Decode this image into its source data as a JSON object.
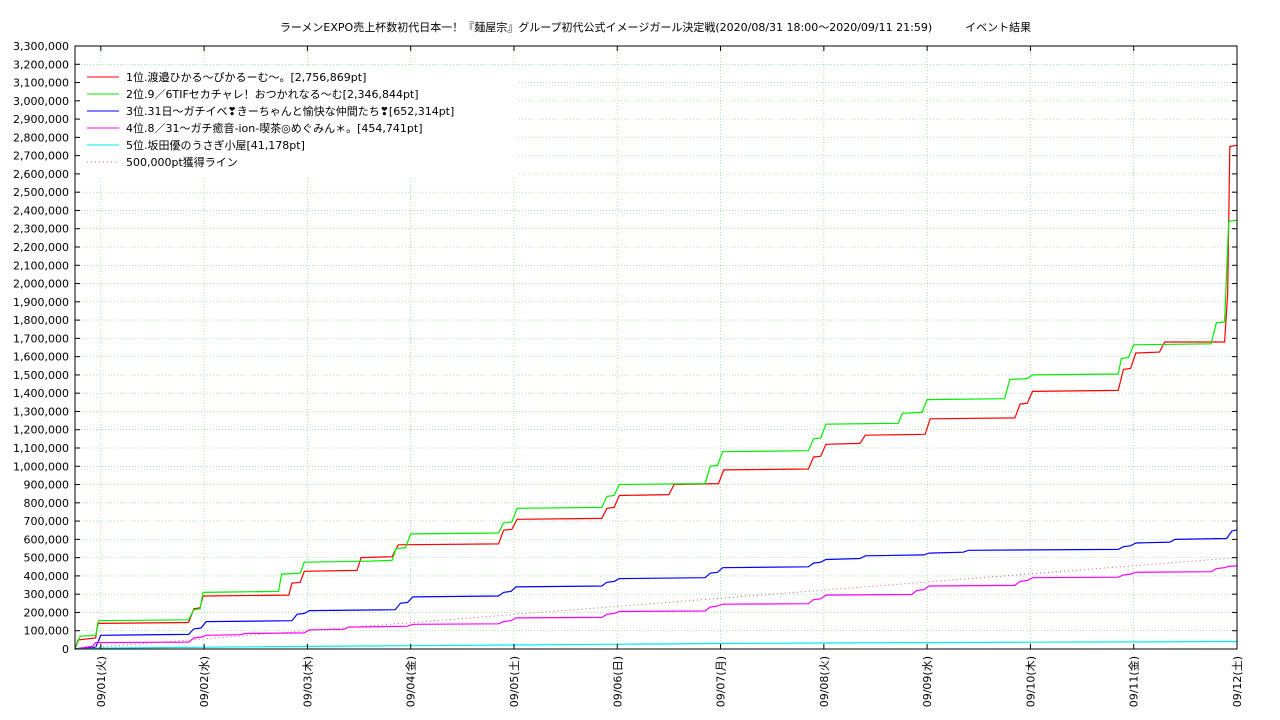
{
  "chart_data": {
    "type": "line",
    "title": "ラーメンEXPO売上杯数初代日本一！『麺屋宗』グループ初代公式イメージガール決定戦(2020/08/31 18:00〜2020/09/11 21:59)　　　イベント結果",
    "xlabel": "",
    "ylabel": "",
    "x_ticks": [
      "09/01(火)",
      "09/02(水)",
      "09/03(木)",
      "09/04(金)",
      "09/05(土)",
      "09/06(日)",
      "09/07(月)",
      "09/08(火)",
      "09/09(水)",
      "09/10(木)",
      "09/11(金)",
      "09/12(土)"
    ],
    "x_unit": "days since 09/01 00:00",
    "xlim": [
      -0.25,
      11.0
    ],
    "y_ticks": [
      "0",
      "100,000",
      "200,000",
      "300,000",
      "400,000",
      "500,000",
      "600,000",
      "700,000",
      "800,000",
      "900,000",
      "1,000,000",
      "1,100,000",
      "1,200,000",
      "1,300,000",
      "1,400,000",
      "1,500,000",
      "1,600,000",
      "1,700,000",
      "1,800,000",
      "1,900,000",
      "2,000,000",
      "2,100,000",
      "2,200,000",
      "2,300,000",
      "2,400,000",
      "2,500,000",
      "2,600,000",
      "2,700,000",
      "2,800,000",
      "2,900,000",
      "3,000,000",
      "3,100,000",
      "3,200,000",
      "3,300,000"
    ],
    "ylim": [
      0,
      3300000
    ],
    "grid": true,
    "legend_position": "top-left",
    "series": [
      {
        "name": "1位.渡邉ひかる〜ぴかるーむ〜。[2,756,869pt]",
        "color": "#ff0000",
        "dash": "",
        "points": [
          [
            -0.25,
            0
          ],
          [
            -0.22,
            50000
          ],
          [
            -0.05,
            60000
          ],
          [
            -0.03,
            140000
          ],
          [
            0.85,
            145000
          ],
          [
            0.9,
            220000
          ],
          [
            0.96,
            225000
          ],
          [
            0.99,
            290000
          ],
          [
            1.82,
            295000
          ],
          [
            1.85,
            360000
          ],
          [
            1.93,
            365000
          ],
          [
            1.97,
            425000
          ],
          [
            2.48,
            430000
          ],
          [
            2.52,
            500000
          ],
          [
            2.82,
            505000
          ],
          [
            2.88,
            570000
          ],
          [
            3.85,
            575000
          ],
          [
            3.9,
            650000
          ],
          [
            3.98,
            655000
          ],
          [
            4.03,
            710000
          ],
          [
            4.85,
            715000
          ],
          [
            4.9,
            770000
          ],
          [
            4.97,
            775000
          ],
          [
            5.02,
            840000
          ],
          [
            5.5,
            845000
          ],
          [
            5.55,
            900000
          ],
          [
            5.98,
            905000
          ],
          [
            6.03,
            980000
          ],
          [
            6.85,
            985000
          ],
          [
            6.9,
            1050000
          ],
          [
            6.97,
            1055000
          ],
          [
            7.02,
            1120000
          ],
          [
            7.35,
            1125000
          ],
          [
            7.4,
            1170000
          ],
          [
            7.98,
            1175000
          ],
          [
            8.03,
            1260000
          ],
          [
            8.85,
            1265000
          ],
          [
            8.9,
            1340000
          ],
          [
            8.97,
            1345000
          ],
          [
            9.02,
            1410000
          ],
          [
            9.85,
            1415000
          ],
          [
            9.9,
            1530000
          ],
          [
            9.97,
            1535000
          ],
          [
            10.02,
            1620000
          ],
          [
            10.25,
            1625000
          ],
          [
            10.3,
            1680000
          ],
          [
            10.88,
            1680000
          ],
          [
            10.91,
            1950000
          ],
          [
            10.93,
            2750000
          ],
          [
            11.0,
            2756869
          ]
        ]
      },
      {
        "name": "2位.9／6TIFセカチャレ！おつかれなる〜む[2,346,844pt]",
        "color": "#00ee00",
        "dash": "",
        "points": [
          [
            -0.25,
            0
          ],
          [
            -0.2,
            70000
          ],
          [
            -0.05,
            75000
          ],
          [
            -0.02,
            155000
          ],
          [
            0.85,
            160000
          ],
          [
            0.9,
            215000
          ],
          [
            0.96,
            220000
          ],
          [
            0.99,
            310000
          ],
          [
            1.72,
            315000
          ],
          [
            1.75,
            410000
          ],
          [
            1.93,
            415000
          ],
          [
            1.97,
            475000
          ],
          [
            2.5,
            480000
          ],
          [
            2.55,
            480000
          ],
          [
            2.82,
            485000
          ],
          [
            2.86,
            550000
          ],
          [
            2.95,
            555000
          ],
          [
            3.0,
            630000
          ],
          [
            3.85,
            635000
          ],
          [
            3.9,
            690000
          ],
          [
            3.98,
            695000
          ],
          [
            4.03,
            770000
          ],
          [
            4.85,
            775000
          ],
          [
            4.9,
            835000
          ],
          [
            4.97,
            840000
          ],
          [
            5.02,
            900000
          ],
          [
            5.85,
            905000
          ],
          [
            5.9,
            1000000
          ],
          [
            5.97,
            1005000
          ],
          [
            6.02,
            1080000
          ],
          [
            6.85,
            1085000
          ],
          [
            6.9,
            1150000
          ],
          [
            6.97,
            1155000
          ],
          [
            7.02,
            1230000
          ],
          [
            7.72,
            1235000
          ],
          [
            7.76,
            1290000
          ],
          [
            7.95,
            1295000
          ],
          [
            8.0,
            1365000
          ],
          [
            8.75,
            1370000
          ],
          [
            8.8,
            1475000
          ],
          [
            8.97,
            1480000
          ],
          [
            9.02,
            1500000
          ],
          [
            9.85,
            1505000
          ],
          [
            9.88,
            1590000
          ],
          [
            9.95,
            1595000
          ],
          [
            10.0,
            1665000
          ],
          [
            10.75,
            1670000
          ],
          [
            10.8,
            1785000
          ],
          [
            10.88,
            1790000
          ],
          [
            10.92,
            2340000
          ],
          [
            11.0,
            2346844
          ]
        ]
      },
      {
        "name": "3位.31日〜ガチイベ❣きーちゃんと愉快な仲間たち❣[652,314pt]",
        "color": "#0000ff",
        "dash": "",
        "points": [
          [
            -0.25,
            0
          ],
          [
            -0.15,
            5000
          ],
          [
            -0.05,
            10000
          ],
          [
            0.0,
            75000
          ],
          [
            0.85,
            80000
          ],
          [
            0.9,
            110000
          ],
          [
            0.97,
            115000
          ],
          [
            1.02,
            150000
          ],
          [
            1.85,
            155000
          ],
          [
            1.9,
            190000
          ],
          [
            1.97,
            195000
          ],
          [
            2.02,
            210000
          ],
          [
            2.85,
            215000
          ],
          [
            2.9,
            250000
          ],
          [
            2.97,
            255000
          ],
          [
            3.02,
            285000
          ],
          [
            3.85,
            290000
          ],
          [
            3.9,
            310000
          ],
          [
            3.97,
            315000
          ],
          [
            4.02,
            340000
          ],
          [
            4.85,
            345000
          ],
          [
            4.9,
            365000
          ],
          [
            4.97,
            370000
          ],
          [
            5.02,
            385000
          ],
          [
            5.85,
            390000
          ],
          [
            5.9,
            415000
          ],
          [
            5.97,
            420000
          ],
          [
            6.02,
            445000
          ],
          [
            6.85,
            450000
          ],
          [
            6.9,
            470000
          ],
          [
            6.97,
            475000
          ],
          [
            7.02,
            490000
          ],
          [
            7.35,
            495000
          ],
          [
            7.4,
            510000
          ],
          [
            7.97,
            515000
          ],
          [
            8.02,
            525000
          ],
          [
            8.35,
            530000
          ],
          [
            8.4,
            540000
          ],
          [
            9.85,
            545000
          ],
          [
            9.9,
            560000
          ],
          [
            9.97,
            565000
          ],
          [
            10.02,
            580000
          ],
          [
            10.35,
            585000
          ],
          [
            10.4,
            600000
          ],
          [
            10.9,
            605000
          ],
          [
            10.95,
            645000
          ],
          [
            11.0,
            652314
          ]
        ]
      },
      {
        "name": "4位.8／31〜ガチ癒音-ion-喫茶◎めぐみん＊。[454,741pt]",
        "color": "#ff00ff",
        "dash": "",
        "points": [
          [
            -0.25,
            0
          ],
          [
            -0.15,
            10000
          ],
          [
            -0.08,
            15000
          ],
          [
            -0.05,
            35000
          ],
          [
            0.85,
            38000
          ],
          [
            0.9,
            60000
          ],
          [
            0.97,
            65000
          ],
          [
            1.02,
            75000
          ],
          [
            1.35,
            78000
          ],
          [
            1.4,
            85000
          ],
          [
            1.97,
            88000
          ],
          [
            2.02,
            105000
          ],
          [
            2.35,
            108000
          ],
          [
            2.4,
            120000
          ],
          [
            2.97,
            125000
          ],
          [
            3.02,
            135000
          ],
          [
            3.85,
            138000
          ],
          [
            3.9,
            150000
          ],
          [
            3.97,
            155000
          ],
          [
            4.02,
            170000
          ],
          [
            4.85,
            173000
          ],
          [
            4.9,
            190000
          ],
          [
            4.97,
            195000
          ],
          [
            5.02,
            205000
          ],
          [
            5.85,
            208000
          ],
          [
            5.9,
            230000
          ],
          [
            5.97,
            235000
          ],
          [
            6.02,
            245000
          ],
          [
            6.85,
            248000
          ],
          [
            6.9,
            270000
          ],
          [
            6.97,
            275000
          ],
          [
            7.02,
            295000
          ],
          [
            7.85,
            298000
          ],
          [
            7.9,
            320000
          ],
          [
            7.97,
            325000
          ],
          [
            8.02,
            345000
          ],
          [
            8.85,
            348000
          ],
          [
            8.9,
            370000
          ],
          [
            8.97,
            375000
          ],
          [
            9.02,
            390000
          ],
          [
            9.85,
            393000
          ],
          [
            9.9,
            405000
          ],
          [
            9.97,
            410000
          ],
          [
            10.02,
            420000
          ],
          [
            10.75,
            423000
          ],
          [
            10.8,
            440000
          ],
          [
            10.88,
            445000
          ],
          [
            10.92,
            452000
          ],
          [
            11.0,
            454741
          ]
        ]
      },
      {
        "name": "5位.坂田優のうさぎ小屋[41,178pt]",
        "color": "#00eeee",
        "dash": "",
        "points": [
          [
            -0.25,
            0
          ],
          [
            -0.1,
            2000
          ],
          [
            0.0,
            5000
          ],
          [
            1.0,
            10000
          ],
          [
            2.0,
            14000
          ],
          [
            3.0,
            18000
          ],
          [
            4.0,
            22000
          ],
          [
            5.0,
            26000
          ],
          [
            5.5,
            28000
          ],
          [
            6.0,
            30000
          ],
          [
            7.0,
            33000
          ],
          [
            8.0,
            35000
          ],
          [
            9.0,
            37000
          ],
          [
            10.0,
            39000
          ],
          [
            11.0,
            41178
          ]
        ]
      },
      {
        "name": "500,000pt獲得ライン",
        "color": "#cc6666",
        "dash": "1,3",
        "points": [
          [
            -0.25,
            0
          ],
          [
            11.0,
            500000
          ]
        ]
      }
    ]
  }
}
